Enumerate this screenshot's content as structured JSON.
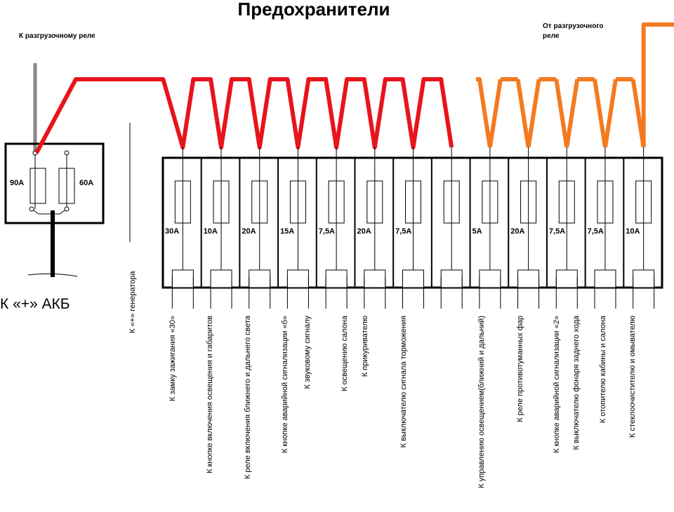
{
  "title": "Предохранители",
  "left_label": "К разгрузочному реле",
  "right_label": [
    "От разгрузочного",
    "реле"
  ],
  "main_fuses": [
    "90А",
    "60А"
  ],
  "battery_label": "К «+» АКБ",
  "generator_label": "К «+» генератора",
  "fuses": [
    {
      "rating": "30А"
    },
    {
      "rating": "10А"
    },
    {
      "rating": "20А"
    },
    {
      "rating": "15А"
    },
    {
      "rating": "7,5А"
    },
    {
      "rating": "20А"
    },
    {
      "rating": "7,5А"
    },
    {},
    {
      "rating": "5А"
    },
    {
      "rating": "20А"
    },
    {
      "rating": "7,5А"
    },
    {
      "rating": "7,5А"
    },
    {
      "rating": "10А"
    }
  ],
  "loads": [
    "К замку зажигания «30»",
    "К кнопке включения освещения и габаритов",
    "К реле включения ближнего и дальнего света",
    "К кнопке аварийной сигнализации «б»",
    "К звуковому сигналу",
    "К освещению салона",
    "К прикуривателю",
    "К выключателю сигнала торможения",
    "К управлению освещением(ближний и дальний)",
    "К реле противотуманных фар",
    "К кнопке аварийной сигнализации «2»",
    "К выключателю фонаря заднего хода",
    "К отопителю кабины и салона",
    "К стеклоочистителю и омывателю"
  ]
}
